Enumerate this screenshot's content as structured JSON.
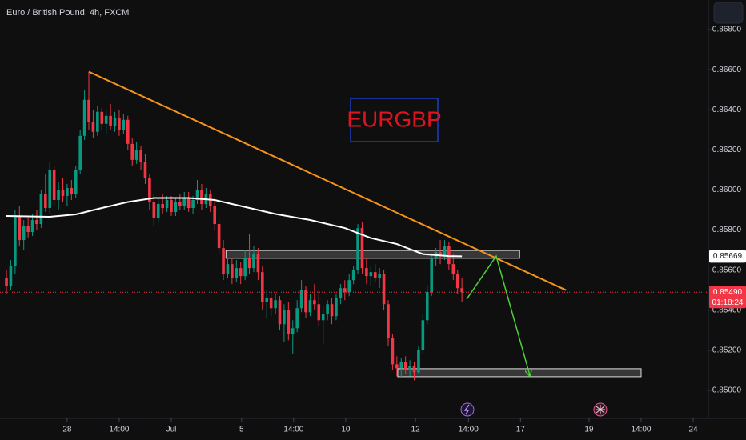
{
  "chart_data": {
    "type": "candlestick",
    "title": "Euro / British Pound, 4h, FXCM",
    "annotation": "EURGBP",
    "up_color": "#089981",
    "down_color": "#f23645",
    "ylim": [
      0.8486,
      0.86948
    ],
    "yticks": [
      {
        "value": 0.85,
        "label": "0.85000"
      },
      {
        "value": 0.852,
        "label": "0.85200"
      },
      {
        "value": 0.854,
        "label": "0.85400"
      },
      {
        "value": 0.856,
        "label": "0.85600"
      },
      {
        "value": 0.858,
        "label": "0.85800"
      },
      {
        "value": 0.86,
        "label": "0.86000"
      },
      {
        "value": 0.862,
        "label": "0.86200"
      },
      {
        "value": 0.864,
        "label": "0.86400"
      },
      {
        "value": 0.866,
        "label": "0.86600"
      },
      {
        "value": 0.868,
        "label": "0.86800"
      }
    ],
    "xlim": [
      -1.48,
      161.8
    ],
    "xticks": [
      {
        "value": 14,
        "label": "28"
      },
      {
        "value": 26,
        "label": "14:00"
      },
      {
        "value": 38,
        "label": "Jul"
      },
      {
        "value": 54.2,
        "label": "5"
      },
      {
        "value": 66.2,
        "label": "14:00"
      },
      {
        "value": 78.2,
        "label": "10"
      },
      {
        "value": 94.3,
        "label": "12"
      },
      {
        "value": 106.5,
        "label": "14:00"
      },
      {
        "value": 118.5,
        "label": "17"
      },
      {
        "value": 134.3,
        "label": "19"
      },
      {
        "value": 146.3,
        "label": "14:00"
      },
      {
        "value": 158.3,
        "label": "24"
      }
    ],
    "open": [
      0.8556,
      0.8552,
      0.8562,
      0.8587,
      0.8575,
      0.8582,
      0.8579,
      0.8585,
      0.8583,
      0.8598,
      0.8591,
      0.861,
      0.8595,
      0.86,
      0.8597,
      0.8601,
      0.8598,
      0.861,
      0.8627,
      0.8645,
      0.8634,
      0.8629,
      0.8639,
      0.8633,
      0.8637,
      0.8632,
      0.8636,
      0.863,
      0.8635,
      0.8623,
      0.8615,
      0.862,
      0.8614,
      0.8606,
      0.8594,
      0.8586,
      0.8593,
      0.8591,
      0.8595,
      0.8589,
      0.8594,
      0.8592,
      0.8596,
      0.8591,
      0.8595,
      0.86,
      0.8593,
      0.8598,
      0.8592,
      0.8583,
      0.8571,
      0.8558,
      0.8563,
      0.8556,
      0.8561,
      0.8557,
      0.8566,
      0.8561,
      0.8568,
      0.8559,
      0.8544,
      0.8546,
      0.8541,
      0.8545,
      0.8533,
      0.854,
      0.8528,
      0.8531,
      0.8541,
      0.855,
      0.8539,
      0.8545,
      0.8543,
      0.8535,
      0.8538,
      0.8543,
      0.8537,
      0.8546,
      0.8551,
      0.8549,
      0.8555,
      0.856,
      0.8581,
      0.8561,
      0.8557,
      0.8559,
      0.8556,
      0.8558,
      0.8543,
      0.8526,
      0.8513,
      0.8511,
      0.8514,
      0.851,
      0.8512,
      0.8509,
      0.852,
      0.8535,
      0.8549,
      0.8566,
      0.8569,
      0.8567,
      0.8572,
      0.8563,
      0.8558,
      0.8551
    ],
    "high": [
      0.856,
      0.8565,
      0.859,
      0.8592,
      0.8585,
      0.8586,
      0.8588,
      0.859,
      0.86,
      0.8608,
      0.8614,
      0.8612,
      0.8604,
      0.8606,
      0.8603,
      0.8605,
      0.8612,
      0.863,
      0.865,
      0.8659,
      0.864,
      0.8642,
      0.8641,
      0.864,
      0.8643,
      0.8639,
      0.864,
      0.8638,
      0.8637,
      0.8626,
      0.8624,
      0.8622,
      0.8618,
      0.8608,
      0.8598,
      0.8596,
      0.8598,
      0.8597,
      0.8597,
      0.8596,
      0.8598,
      0.8599,
      0.8599,
      0.8597,
      0.8605,
      0.8603,
      0.8601,
      0.86,
      0.8596,
      0.8586,
      0.8575,
      0.8566,
      0.8566,
      0.8565,
      0.8564,
      0.857,
      0.8578,
      0.8572,
      0.8571,
      0.8562,
      0.855,
      0.8549,
      0.8548,
      0.8547,
      0.8543,
      0.8544,
      0.8535,
      0.8545,
      0.8555,
      0.8552,
      0.8548,
      0.8553,
      0.855,
      0.8542,
      0.8545,
      0.8546,
      0.8548,
      0.8553,
      0.8555,
      0.8558,
      0.8562,
      0.8583,
      0.8584,
      0.8566,
      0.8562,
      0.8563,
      0.8561,
      0.856,
      0.8545,
      0.8528,
      0.8517,
      0.8516,
      0.8517,
      0.8515,
      0.8514,
      0.8522,
      0.8538,
      0.8552,
      0.8568,
      0.8571,
      0.8575,
      0.8575,
      0.8574,
      0.8568,
      0.856,
      0.8556
    ],
    "low": [
      0.8548,
      0.855,
      0.8558,
      0.8572,
      0.857,
      0.8576,
      0.8577,
      0.858,
      0.8581,
      0.8589,
      0.8588,
      0.8592,
      0.859,
      0.8594,
      0.8592,
      0.8595,
      0.8596,
      0.8608,
      0.8625,
      0.863,
      0.8626,
      0.8627,
      0.863,
      0.8628,
      0.863,
      0.8629,
      0.8627,
      0.8628,
      0.862,
      0.8612,
      0.8613,
      0.861,
      0.8603,
      0.859,
      0.8582,
      0.8584,
      0.8588,
      0.8589,
      0.8587,
      0.8587,
      0.859,
      0.859,
      0.8589,
      0.8588,
      0.8593,
      0.859,
      0.8591,
      0.8589,
      0.858,
      0.8568,
      0.8555,
      0.8556,
      0.8553,
      0.8554,
      0.8553,
      0.8555,
      0.8558,
      0.8559,
      0.8555,
      0.854,
      0.8536,
      0.8537,
      0.8538,
      0.853,
      0.8524,
      0.8525,
      0.8518,
      0.8529,
      0.8539,
      0.8536,
      0.8537,
      0.854,
      0.8532,
      0.8523,
      0.8535,
      0.8533,
      0.8535,
      0.8543,
      0.8545,
      0.8547,
      0.8553,
      0.8558,
      0.8558,
      0.8553,
      0.8552,
      0.8554,
      0.8551,
      0.854,
      0.8522,
      0.851,
      0.8507,
      0.8506,
      0.8508,
      0.8507,
      0.8505,
      0.8508,
      0.8518,
      0.8533,
      0.8547,
      0.8562,
      0.8563,
      0.8565,
      0.856,
      0.8555,
      0.8548,
      0.8544
    ],
    "close": [
      0.8552,
      0.8562,
      0.8587,
      0.8575,
      0.8582,
      0.8579,
      0.8585,
      0.8583,
      0.8598,
      0.8591,
      0.861,
      0.8595,
      0.86,
      0.8597,
      0.8601,
      0.8598,
      0.861,
      0.8627,
      0.8645,
      0.8634,
      0.8629,
      0.8639,
      0.8633,
      0.8637,
      0.8632,
      0.8636,
      0.863,
      0.8635,
      0.8623,
      0.8615,
      0.862,
      0.8614,
      0.8606,
      0.8594,
      0.8586,
      0.8593,
      0.8591,
      0.8595,
      0.8589,
      0.8594,
      0.8592,
      0.8596,
      0.8591,
      0.8595,
      0.86,
      0.8593,
      0.8598,
      0.8592,
      0.8583,
      0.8571,
      0.8558,
      0.8563,
      0.8556,
      0.8561,
      0.8557,
      0.8566,
      0.8561,
      0.8568,
      0.8559,
      0.8544,
      0.8546,
      0.8541,
      0.8545,
      0.8533,
      0.854,
      0.8528,
      0.8531,
      0.8541,
      0.855,
      0.8539,
      0.8545,
      0.8543,
      0.8535,
      0.8538,
      0.8543,
      0.8537,
      0.8546,
      0.8551,
      0.8549,
      0.8555,
      0.856,
      0.8581,
      0.8561,
      0.8557,
      0.8559,
      0.8556,
      0.8558,
      0.8543,
      0.8526,
      0.8513,
      0.8511,
      0.8514,
      0.851,
      0.8512,
      0.8509,
      0.852,
      0.8535,
      0.8549,
      0.8566,
      0.8569,
      0.8567,
      0.8572,
      0.8563,
      0.8558,
      0.8551,
      0.8549
    ],
    "moving_average": {
      "color": "#ffffff",
      "x": [
        0,
        10,
        16,
        22,
        28,
        34,
        42,
        48,
        54,
        62,
        70,
        78,
        84,
        90,
        96,
        102,
        105
      ],
      "values": [
        0.8587,
        0.85866,
        0.85878,
        0.8591,
        0.8594,
        0.8596,
        0.8596,
        0.8595,
        0.8592,
        0.8588,
        0.8585,
        0.8581,
        0.8576,
        0.8573,
        0.8568,
        0.8567,
        0.85669
      ]
    },
    "trendline": {
      "color": "#f7931a",
      "x": [
        19,
        129
      ],
      "values": [
        0.8659,
        0.855
      ]
    },
    "zones": [
      {
        "x": [
          50.6,
          118.3
        ],
        "values": [
          0.85659,
          0.85698
        ]
      },
      {
        "x": [
          90.2,
          146.3
        ],
        "values": [
          0.85068,
          0.85108
        ]
      }
    ],
    "projection": {
      "color": "#4cd137",
      "x": [
        106.1,
        112.9,
        120.7
      ],
      "values": [
        0.85455,
        0.8567,
        0.85072
      ]
    },
    "price_tags": [
      {
        "value": 0.85669,
        "label": "0.85669"
      },
      {
        "value": 0.8549,
        "label": "0.85490",
        "countdown": "01:18:24"
      }
    ]
  }
}
